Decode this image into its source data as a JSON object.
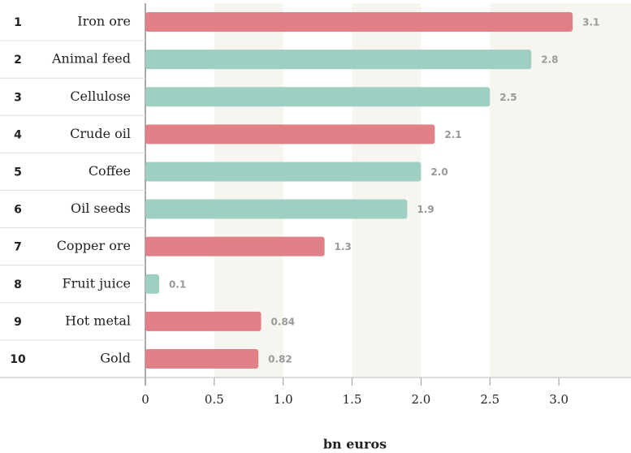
{
  "chart_data": {
    "type": "bar",
    "orientation": "horizontal",
    "ranks": [
      1,
      2,
      3,
      4,
      5,
      6,
      7,
      8,
      9,
      10
    ],
    "categories": [
      "Iron ore",
      "Animal feed",
      "Cellulose",
      "Crude oil",
      "Coffee",
      "Oil seeds",
      "Copper ore",
      "Fruit juice",
      "Hot metal",
      "Gold"
    ],
    "values": [
      3.1,
      2.8,
      2.5,
      2.1,
      2,
      1.9,
      1.3,
      0.1,
      0.84,
      0.82
    ],
    "value_labels": [
      "3.1",
      "2.8",
      "2.5",
      "2.1",
      "2.0",
      "1.9",
      "1.3",
      "0.1",
      "0.84",
      "0.82"
    ],
    "colors": [
      "#e28088",
      "#9fcfc2",
      "#9fcfc2",
      "#e28088",
      "#9fcfc2",
      "#9fcfc2",
      "#e28088",
      "#9fcfc2",
      "#e28088",
      "#e28088"
    ],
    "xlim": [
      0,
      3.5
    ],
    "xticks": [
      0,
      0.5,
      {
        "value": 1,
        "label": "1.0"
      },
      1.5,
      {
        "value": 2,
        "label": "2.0"
      },
      2.5,
      {
        "value": 3,
        "label": "3.0"
      }
    ],
    "xlabel": "bn euros",
    "grid": true
  }
}
